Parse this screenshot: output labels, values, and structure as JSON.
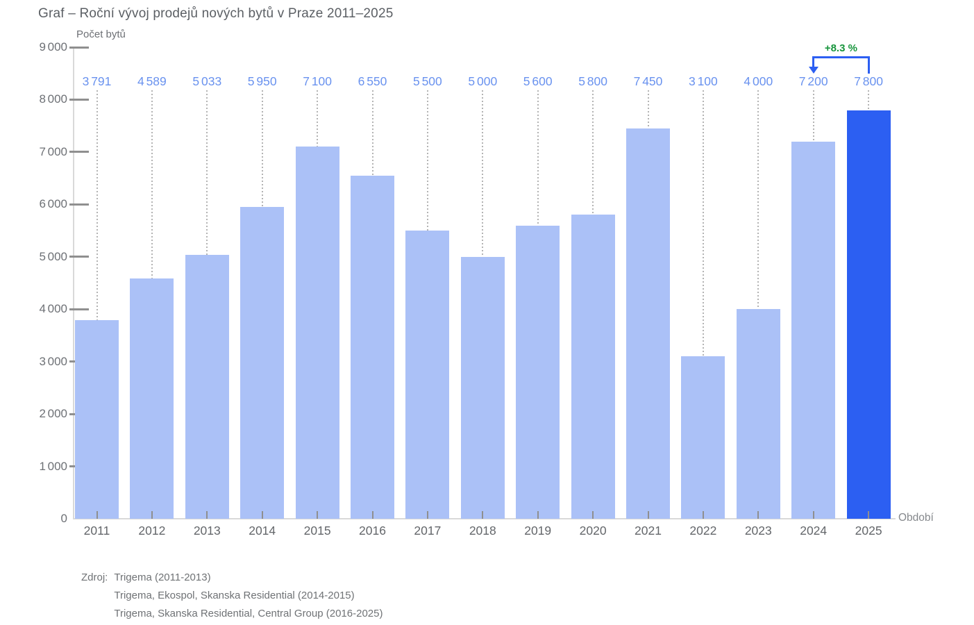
{
  "chart_data": {
    "type": "bar",
    "title": "Graf – Roční vývoj prodejů nových bytů v Praze 2011–2025",
    "ylabel": "Počet bytů",
    "xlabel": "Období",
    "categories": [
      "2011",
      "2012",
      "2013",
      "2014",
      "2015",
      "2016",
      "2017",
      "2018",
      "2019",
      "2020",
      "2021",
      "2022",
      "2023",
      "2024",
      "2025"
    ],
    "values": [
      3791,
      4589,
      5033,
      5950,
      7100,
      6550,
      5500,
      5000,
      5600,
      5800,
      7450,
      3100,
      4000,
      7200,
      7800
    ],
    "value_labels": [
      "3 791",
      "4 589",
      "5 033",
      "5 950",
      "7 100",
      "6 550",
      "5 500",
      "5 000",
      "5 600",
      "5 800",
      "7 450",
      "3 100",
      "4 000",
      "7 200",
      "7 800"
    ],
    "ylim": [
      0,
      9000
    ],
    "ytick_labels": [
      "0",
      "1 000",
      "2 000",
      "3 000",
      "4 000",
      "5 000",
      "6 000",
      "7 000",
      "8 000",
      "9 000"
    ],
    "grid": false,
    "legend": null,
    "highlight_index": 14,
    "annotation": {
      "label": "+8.3 %",
      "from_index": 13,
      "to_index": 14
    },
    "colors": {
      "bar": "#abc1f7",
      "bar_highlight": "#2c5ff2",
      "value_label": "#6992ef",
      "annotation_green": "#17953c",
      "axis_line": "#d9d9d9",
      "tick_mark": "#8f8f8f",
      "leader_dots": "#b3b3b3",
      "text_gray": "#5b5f64"
    },
    "sources": {
      "label": "Zdroj:",
      "lines": [
        "Trigema (2011-2013)",
        "Trigema, Ekospol, Skanska Residential (2014-2015)",
        "Trigema, Skanska Residential, Central Group (2016-2025)"
      ]
    }
  }
}
